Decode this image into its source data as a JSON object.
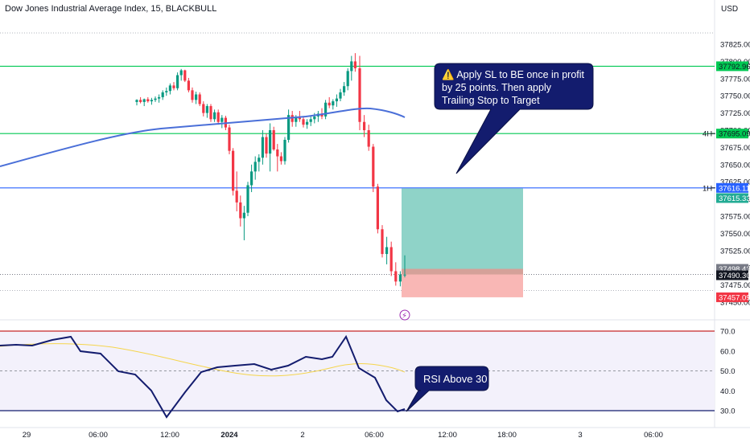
{
  "header": {
    "title": "Dow Jones Industrial Average Index, 15, BLACKBULL",
    "currency": "USD"
  },
  "chart_data": [
    {
      "type": "candlestick",
      "name": "price",
      "y_range": [
        37437,
        37835
      ],
      "y_ticks": [
        37450,
        37475,
        37500,
        37525,
        37550,
        37575,
        37600,
        37625,
        37650,
        37675,
        37700,
        37725,
        37750,
        37775,
        37800,
        37825
      ],
      "y_tick_labels": [
        "37450.00",
        "37475.00",
        "37500.00",
        "37525.00",
        "37550.00",
        "37575.00",
        "37600.00",
        "37625.00",
        "37650.00",
        "37675.00",
        "37700.00",
        "37725.00",
        "37750.00",
        "37775.00",
        "37800.00",
        "37825.00"
      ],
      "x_labels": [
        "29",
        "06:00",
        "12:00",
        "2024",
        "2",
        "06:00",
        "12:00",
        "18:00",
        "3",
        "06:00"
      ],
      "grid": false,
      "horizontal_lines": [
        {
          "price": 37792.96,
          "color": "#00c853",
          "label": "37792.96"
        },
        {
          "price": 37695.09,
          "color": "#00c853",
          "label": "37695.09",
          "tag": "4H"
        },
        {
          "price": 37616.11,
          "color": "#2962ff",
          "label": "37616.11",
          "tag": "1H"
        }
      ],
      "price_labels": [
        {
          "price": 37615.33,
          "label": "37615.33",
          "color": "#22ab94"
        },
        {
          "price": 37498.43,
          "label": "37498.43",
          "color": "#787b86"
        },
        {
          "price": 37490.3,
          "label": "37490.30",
          "color": "#131722"
        },
        {
          "price": 37457.09,
          "label": "37457.09",
          "color": "#f23645"
        }
      ],
      "position": {
        "entry": 37490.3,
        "target": 37615.33,
        "stop": 37457.09
      },
      "annotations": [
        {
          "text": "⚠️ Apply SL to BE once in profit by 25 points. Then apply Trailing Stop to Target"
        }
      ],
      "moving_average": {
        "color": "#4a6fd8"
      }
    },
    {
      "type": "line",
      "name": "RSI",
      "y_range": [
        25,
        75
      ],
      "y_ticks": [
        30,
        40,
        50,
        60,
        70
      ],
      "y_tick_labels": [
        "30.0",
        "40.0",
        "50.0",
        "60.0",
        "70.0"
      ],
      "levels": [
        70,
        50,
        30
      ],
      "annotations": [
        {
          "text": "RSI Above 30"
        }
      ]
    }
  ]
}
